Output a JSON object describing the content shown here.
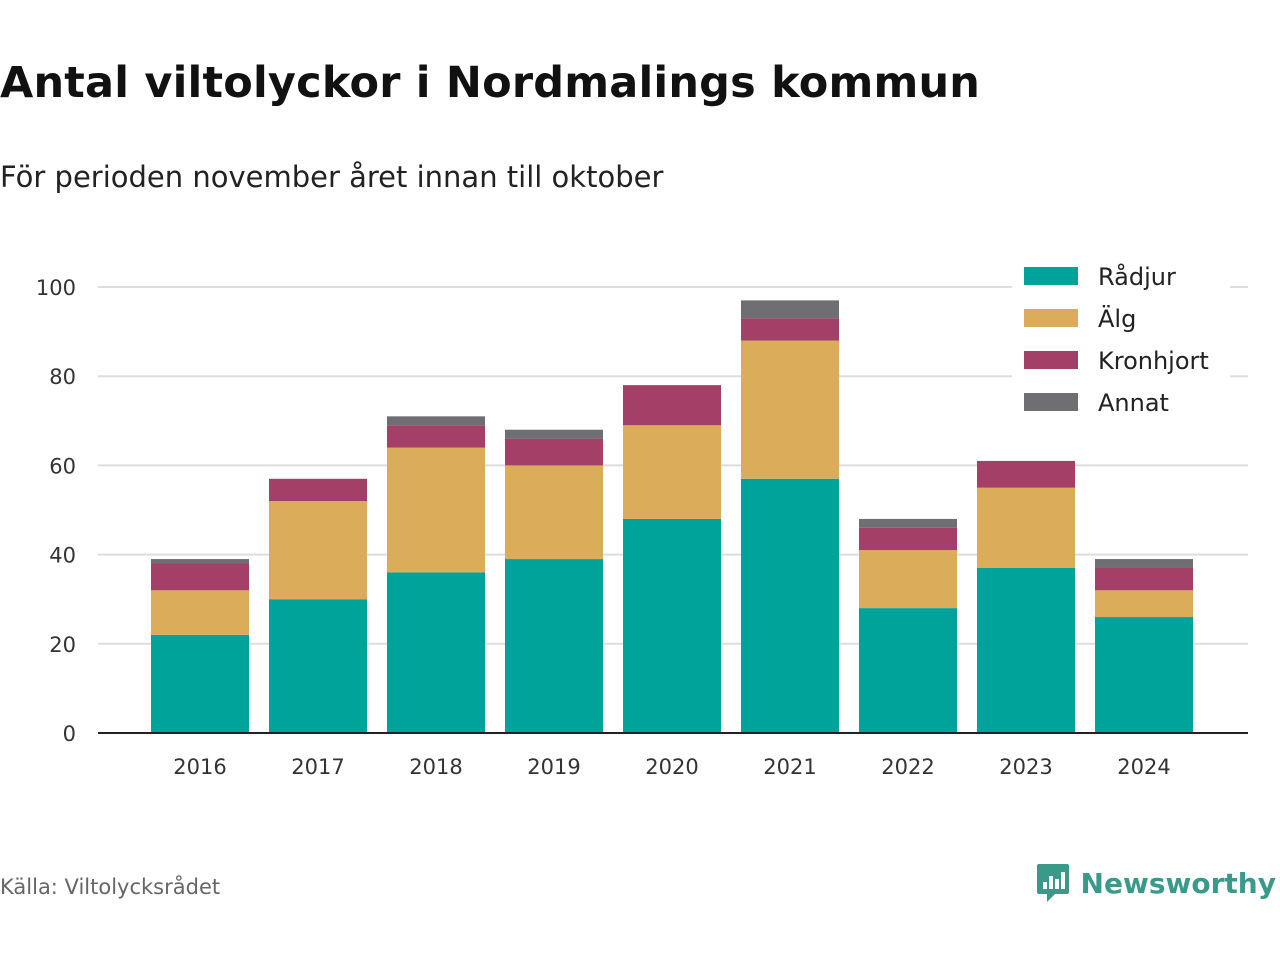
{
  "title": "Antal viltolyckor i Nordmalings kommun",
  "subtitle": "För perioden november året innan till oktober",
  "source": "Källa: Viltolycksrådet",
  "brand": "Newsworthy",
  "colors": {
    "Rådjur": "#00a39a",
    "Älg": "#dbac5a",
    "Kronhjort": "#a43f68",
    "Annat": "#6e6e73",
    "grid": "#dddddd",
    "axis": "#222222",
    "brand": "#3a9a8a"
  },
  "chart_data": {
    "type": "bar",
    "stacked": true,
    "categories": [
      "2016",
      "2017",
      "2018",
      "2019",
      "2020",
      "2021",
      "2022",
      "2023",
      "2024"
    ],
    "series": [
      {
        "name": "Rådjur",
        "values": [
          22,
          30,
          36,
          39,
          48,
          57,
          28,
          37,
          26
        ]
      },
      {
        "name": "Älg",
        "values": [
          10,
          22,
          28,
          21,
          21,
          31,
          13,
          18,
          6
        ]
      },
      {
        "name": "Kronhjort",
        "values": [
          6,
          5,
          5,
          6,
          9,
          5,
          5,
          6,
          5
        ]
      },
      {
        "name": "Annat",
        "values": [
          1,
          0,
          2,
          2,
          0,
          4,
          2,
          0,
          2
        ]
      }
    ],
    "yticks": [
      0,
      20,
      40,
      60,
      80,
      100
    ],
    "ylim": [
      0,
      100
    ],
    "grid": true,
    "legend_position": "top-right"
  }
}
